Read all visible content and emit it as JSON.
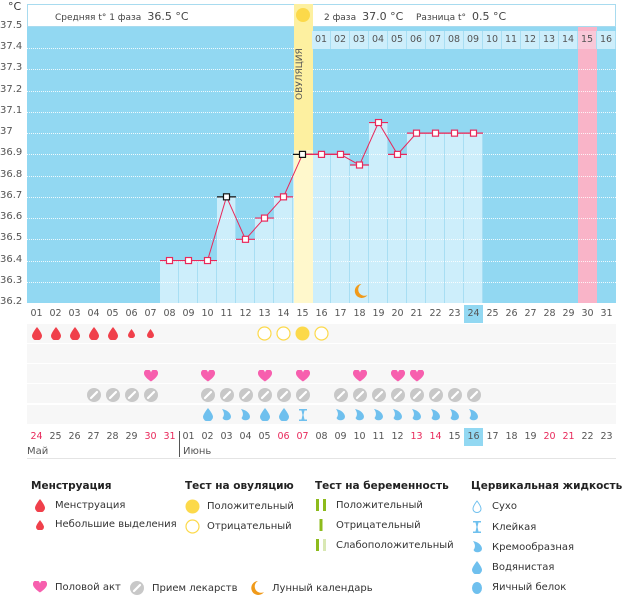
{
  "header": {
    "unit": "°C",
    "phase1_label": "Средняя t° 1 фаза",
    "phase1_value": "36.5 °C",
    "phase2_label": "2 фаза",
    "phase2_value": "37.0 °C",
    "diff_label": "Разница t°",
    "diff_value": "0.5 °C",
    "ovulation_label": "ОВУЛЯЦИЯ"
  },
  "colors": {
    "plot_bg": "#92d8f2",
    "bar": "#cdeefb",
    "ovulation": "#fdf0a0",
    "line": "#e8295b",
    "highlight_pink": "#f9b4c8",
    "menstruation": "#f0404b",
    "heart": "#f75fae",
    "pill": "#c8c8c8",
    "drop": "#6fc0ee",
    "moon": "#f09a1a",
    "sun": "#fcd94a",
    "test_green": "#8dbb1c"
  },
  "top_day_labels": [
    "01",
    "02",
    "03",
    "04",
    "05",
    "06",
    "07",
    "08",
    "09",
    "10",
    "11",
    "12",
    "13",
    "14",
    "15",
    "16"
  ],
  "top_day_highlight": "15",
  "chart_data": {
    "type": "line",
    "title": "",
    "ylabel": "°C",
    "xlabel": "",
    "ylim": [
      36.2,
      37.5
    ],
    "yticks": [
      "37.5",
      "37.4",
      "37.3",
      "37.2",
      "37.1",
      "37",
      "36.9",
      "36.8",
      "36.7",
      "36.6",
      "36.5",
      "36.4",
      "36.3",
      "36.2"
    ],
    "x": [
      "01",
      "02",
      "03",
      "04",
      "05",
      "06",
      "07",
      "08",
      "09",
      "10",
      "11",
      "12",
      "13",
      "14",
      "15",
      "16",
      "17",
      "18",
      "19",
      "20",
      "21",
      "22",
      "23",
      "24",
      "25",
      "26",
      "27",
      "28",
      "29",
      "30",
      "31"
    ],
    "series": [
      {
        "name": "Температура",
        "values": [
          null,
          null,
          null,
          null,
          null,
          null,
          null,
          36.4,
          36.4,
          36.4,
          36.7,
          36.5,
          36.6,
          36.7,
          36.9,
          36.9,
          36.9,
          36.85,
          37.05,
          36.9,
          37.0,
          37.0,
          37.0,
          37.0,
          null,
          null,
          null,
          null,
          null,
          null,
          null
        ]
      }
    ],
    "coverline": 36.9,
    "ovulation_day": "15",
    "current_day": "24",
    "highlight_day": "30",
    "moon_day": "18",
    "grid": true
  },
  "rows": {
    "menstruation": [
      "big",
      "big",
      "big",
      "big",
      "big",
      "small",
      "small",
      null,
      null,
      null,
      null,
      null,
      null,
      null,
      null,
      null,
      null,
      null,
      null,
      null,
      null,
      null,
      null,
      null,
      null,
      null,
      null,
      null,
      null,
      null,
      null
    ],
    "ovulation_test": [
      null,
      null,
      null,
      null,
      null,
      null,
      null,
      null,
      null,
      null,
      null,
      null,
      "negative",
      "negative",
      "positive",
      "negative",
      null,
      null,
      null,
      null,
      null,
      null,
      null,
      null,
      null,
      null,
      null,
      null,
      null,
      null,
      null
    ],
    "sex": [
      null,
      null,
      null,
      null,
      null,
      null,
      true,
      null,
      null,
      true,
      null,
      null,
      true,
      null,
      true,
      null,
      null,
      true,
      null,
      true,
      true,
      null,
      null,
      null,
      null,
      null,
      null,
      null,
      null,
      null,
      null
    ],
    "pills": [
      null,
      null,
      null,
      true,
      true,
      true,
      true,
      null,
      null,
      true,
      true,
      true,
      true,
      true,
      true,
      null,
      true,
      true,
      true,
      true,
      true,
      true,
      true,
      true,
      null,
      null,
      null,
      null,
      null,
      null,
      null
    ],
    "fluid": [
      null,
      null,
      null,
      null,
      null,
      null,
      null,
      null,
      null,
      "watery",
      "creamy",
      "creamy",
      "watery",
      "watery",
      "sticky",
      null,
      "creamy",
      "creamy",
      "creamy",
      "creamy",
      "creamy",
      "creamy",
      "creamy",
      "creamy",
      null,
      null,
      null,
      null,
      null,
      null,
      null
    ]
  },
  "bottom_dates": [
    {
      "d": "24",
      "red": true
    },
    {
      "d": "25"
    },
    {
      "d": "26"
    },
    {
      "d": "27"
    },
    {
      "d": "28"
    },
    {
      "d": "29"
    },
    {
      "d": "30",
      "red": true
    },
    {
      "d": "31",
      "red": true
    },
    {
      "d": "01"
    },
    {
      "d": "02"
    },
    {
      "d": "03"
    },
    {
      "d": "04"
    },
    {
      "d": "05"
    },
    {
      "d": "06",
      "red": true
    },
    {
      "d": "07",
      "red": true
    },
    {
      "d": "08"
    },
    {
      "d": "09"
    },
    {
      "d": "10"
    },
    {
      "d": "11"
    },
    {
      "d": "12"
    },
    {
      "d": "13",
      "red": true
    },
    {
      "d": "14",
      "red": true
    },
    {
      "d": "15"
    },
    {
      "d": "16",
      "sel": true
    },
    {
      "d": "17"
    },
    {
      "d": "18"
    },
    {
      "d": "19"
    },
    {
      "d": "20",
      "red": true
    },
    {
      "d": "21",
      "red": true
    },
    {
      "d": "22"
    },
    {
      "d": "23"
    }
  ],
  "months": {
    "first": "Май",
    "second": "Июнь"
  },
  "legend": {
    "menstruation": {
      "title": "Менструация",
      "items": [
        "Менструация",
        "Небольшие выделения"
      ]
    },
    "ovulation_test": {
      "title": "Тест на овуляцию",
      "items": [
        "Положительный",
        "Отрицательный"
      ]
    },
    "pregnancy_test": {
      "title": "Тест на беременность",
      "items": [
        "Положительный",
        "Отрицательный",
        "Слабоположительный"
      ]
    },
    "cervical_fluid": {
      "title": "Цервикальная жидкость",
      "items": [
        "Сухо",
        "Клейкая",
        "Кремообразная",
        "Водянистая",
        "Яичный белок"
      ]
    },
    "other": [
      "Половой акт",
      "Прием лекарств",
      "Лунный календарь"
    ]
  }
}
